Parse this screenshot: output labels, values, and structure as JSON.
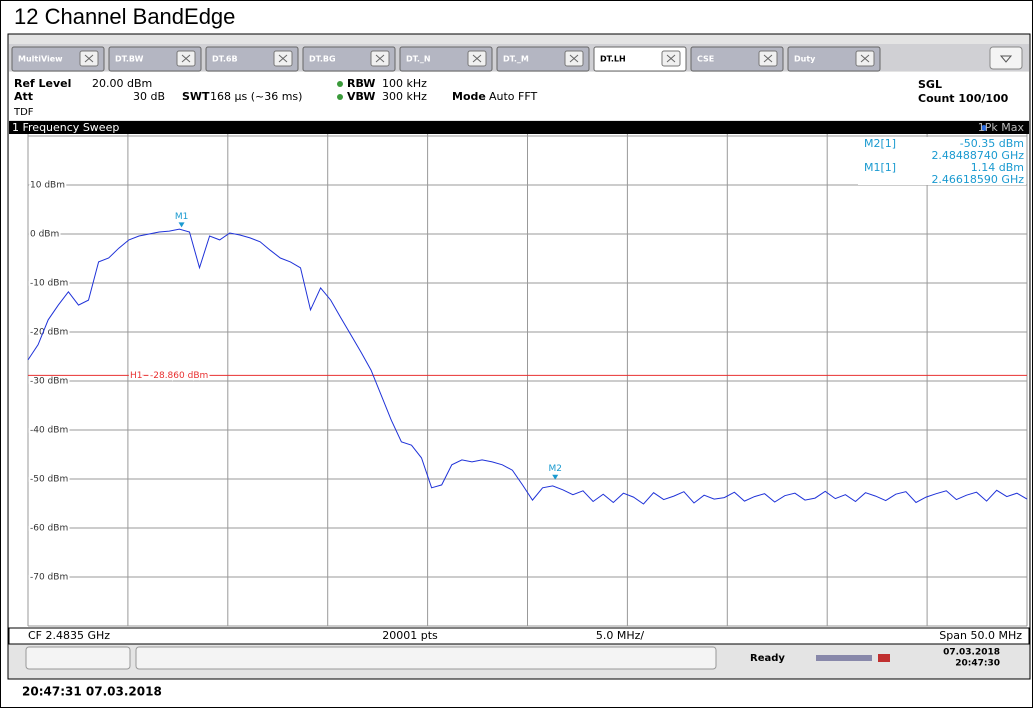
{
  "title": "12 Channel BandEdge",
  "tabs": [
    "MultiView",
    "DT.BW",
    "DT.6B",
    "DT.BG",
    "DT._N",
    "DT._M",
    "DT.LH",
    "CSE",
    "Duty"
  ],
  "settings": {
    "ref_level_label": "Ref Level",
    "ref_level": "20.00 dBm",
    "att_label": "Att",
    "att": "30 dB",
    "swt_label": "SWT",
    "swt": "168 µs (~36 ms)",
    "rbw_label": "RBW",
    "rbw": "100 kHz",
    "vbw_label": "VBW",
    "vbw": "300 kHz",
    "mode_label": "Mode",
    "mode": "Auto FFT",
    "tdf": "TDF",
    "sgl": "SGL",
    "count": "Count 100/100"
  },
  "sweep_title": "1 Frequency Sweep",
  "chart_data": {
    "type": "line",
    "xlim": [
      2.4585,
      2.5085
    ],
    "ylim": [
      -80,
      20
    ],
    "yticks": [
      {
        "value": 10,
        "label": "10 dBm"
      },
      {
        "value": 0,
        "label": "0 dBm"
      },
      {
        "value": -10,
        "label": "-10 dBm"
      },
      {
        "value": -20,
        "label": "-20 dBm"
      },
      {
        "value": -30,
        "label": "-30 dBm"
      },
      {
        "value": -40,
        "label": "-40 dBm"
      },
      {
        "value": -50,
        "label": "-50 dBm"
      },
      {
        "value": -60,
        "label": "-60 dBm"
      },
      {
        "value": -70,
        "label": "-70 dBm"
      }
    ],
    "grid": true,
    "series": [
      {
        "name": "1Pk Max",
        "color": "#1f32d8",
        "values": [
          -25.7,
          -22.6,
          -17.5,
          -14.5,
          -11.8,
          -14.5,
          -13.5,
          -5.7,
          -4.9,
          -2.9,
          -1.2,
          -0.4,
          0,
          0.4,
          0.6,
          1.0,
          0.4,
          -6.9,
          -0.4,
          -1.2,
          0.2,
          -0.2,
          -0.8,
          -1.6,
          -3.3,
          -4.9,
          -5.7,
          -6.9,
          -15.5,
          -11,
          -13.5,
          -17.1,
          -20.6,
          -24.1,
          -27.8,
          -32.9,
          -38,
          -42.4,
          -43.1,
          -45.7,
          -51.8,
          -51.2,
          -47.1,
          -46.1,
          -46.5,
          -46.1,
          -46.5,
          -47.1,
          -48.2,
          -51.2,
          -54.3,
          -51.8,
          -51.4,
          -52.2,
          -53.2,
          -52.4,
          -54.6,
          -53.1,
          -54.8,
          -52.9,
          -53.7,
          -55.1,
          -52.8,
          -54.2,
          -53.5,
          -52.6,
          -54.9,
          -53.3,
          -54.1,
          -53.8,
          -52.7,
          -54.5,
          -53.6,
          -53.0,
          -54.7,
          -53.4,
          -52.9,
          -54.3,
          -53.9,
          -52.5,
          -54.0,
          -53.2,
          -54.6,
          -52.8,
          -53.5,
          -54.4,
          -53.1,
          -52.6,
          -54.8,
          -53.7,
          -53.0,
          -52.4,
          -54.2,
          -53.3,
          -52.7,
          -54.5,
          -52.3,
          -53.6,
          -52.9,
          -54.1
        ]
      }
    ],
    "threshold": {
      "name": "H1",
      "value": -28.86,
      "value_label": "-28.860 dBm",
      "color": "#e83030"
    },
    "markers": [
      {
        "id": "M2",
        "name": "M2[1]",
        "level": -50.35,
        "level_label": "-50.35 dBm",
        "freq": 2.4848874,
        "freq_label": "2.48488740 GHz"
      },
      {
        "id": "M1",
        "name": "M1[1]",
        "level": 1.14,
        "level_label": "1.14 dBm",
        "freq": 2.4661859,
        "freq_label": "2.46618590 GHz"
      }
    ]
  },
  "bottom_bar": {
    "cf": "CF 2.4835 GHz",
    "points": "20001 pts",
    "div": "5.0 MHz/",
    "span": "Span 50.0 MHz"
  },
  "status": {
    "state": "Ready",
    "date": "07.03.2018",
    "time": "20:47:30"
  },
  "timestamp": "20:47:31  07.03.2018"
}
